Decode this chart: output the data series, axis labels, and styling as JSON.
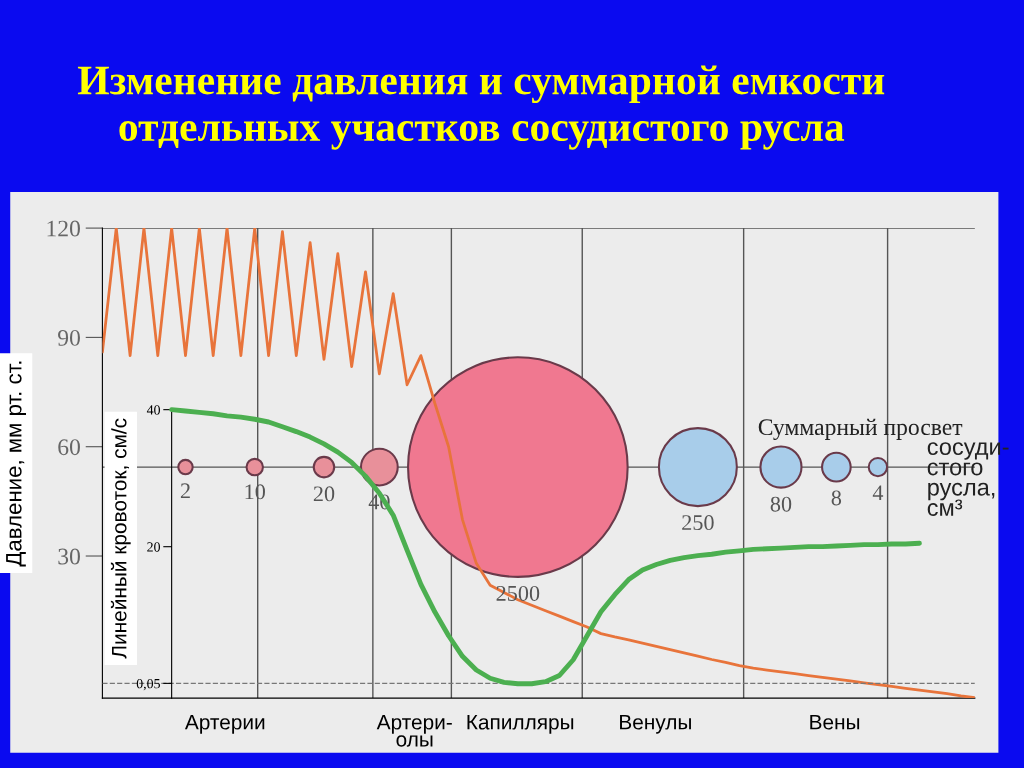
{
  "chart_data": {
    "type": "line",
    "title": "Изменение давления и суммарной емкости\nотдельных участков сосудистого русла",
    "ylabel": "Давление, мм рт. ст.",
    "y2label": "Линейный кровоток, см/с",
    "annotations": [
      "Суммарный просвет",
      "сосуди-\nстого\nрусла,\nсм³",
      "Артерии",
      "Артери-\nолы",
      "Капилляры",
      "Венулы",
      "Вены",
      "2",
      "10",
      "20",
      "40",
      "2500",
      "250",
      "80",
      "8",
      "4"
    ],
    "categories": [
      null,
      null,
      null,
      null,
      null,
      null,
      null,
      null,
      null,
      null,
      null,
      null,
      null,
      null,
      null,
      null,
      null,
      null,
      null,
      null,
      null,
      null,
      null,
      null,
      null,
      null,
      null,
      null,
      null,
      null,
      null,
      null,
      null,
      null,
      null,
      null,
      null,
      null,
      null,
      null,
      null,
      null,
      null,
      null,
      null,
      null,
      null,
      null,
      null,
      null,
      null,
      null,
      null,
      null,
      null,
      null,
      null,
      null,
      null,
      null,
      null,
      null,
      null,
      null
    ],
    "ylim": [
      -9,
      120
    ],
    "yticks": [
      30,
      60,
      90,
      120
    ],
    "y2lim": [
      -2.1,
      66.5
    ],
    "y2ticks": [
      {
        "value": 0.05,
        "label": "0,05"
      },
      20,
      40
    ],
    "grid": false,
    "ref_lines": [
      {
        "axis": "y",
        "value": 54.4,
        "color": "#555555"
      },
      {
        "axis": "y2",
        "value": 0.05,
        "color": "#777777",
        "line_style": "dashed"
      }
    ],
    "series": [
      {
        "type": "line",
        "color": "#e8743b",
        "values": [
          86,
          120,
          85,
          120,
          85,
          120,
          85,
          120,
          85,
          120,
          85,
          120,
          85,
          119,
          85,
          116,
          84,
          113,
          82,
          108,
          80,
          102,
          77,
          85,
          72,
          60,
          40,
          28,
          22,
          20,
          18,
          16.5,
          15,
          13.5,
          12,
          10.5,
          8.7,
          7.8,
          7.0,
          6.1,
          5.2,
          4.3,
          3.4,
          2.5,
          1.6,
          0.8,
          -0.1,
          -0.8,
          -1.3,
          -1.8,
          -2.3,
          -2.8,
          -3.3,
          -3.8,
          -4.3,
          -4.8,
          -5.3,
          -5.8,
          -6.3,
          -6.8,
          -7.3,
          -7.8,
          -8.4,
          -8.9
        ]
      },
      {
        "type": "line",
        "color": "#4caf50",
        "axis": "y2",
        "values": [
          null,
          null,
          null,
          null,
          null,
          40,
          39.8,
          39.6,
          39.4,
          39.1,
          38.9,
          38.6,
          38.2,
          37.5,
          36.8,
          36,
          35,
          33.8,
          32.3,
          30.3,
          27.8,
          24.6,
          19.5,
          14.5,
          10.5,
          7,
          4,
          2,
          0.8,
          0.2,
          0,
          0,
          0.3,
          1.2,
          3.5,
          7,
          10.5,
          13,
          15.2,
          16.6,
          17.4,
          18,
          18.4,
          18.7,
          18.9,
          19.2,
          19.4,
          19.6,
          19.7,
          19.8,
          19.9,
          20,
          20,
          20.1,
          20.2,
          20.3,
          20.3,
          20.4,
          20.4,
          20.5,
          null,
          null,
          null,
          null
        ]
      },
      {
        "type": "bubble",
        "values": [
          null,
          null,
          null,
          null,
          null,
          null,
          54.4,
          null,
          null,
          null,
          null,
          54.4,
          null,
          null,
          null,
          null,
          54.4,
          null,
          null,
          null,
          54.4,
          null,
          null,
          null,
          null,
          null,
          null,
          null,
          null,
          null,
          54.4,
          null,
          null,
          null,
          null,
          null,
          null,
          null,
          null,
          null,
          null,
          null,
          null,
          54.4,
          null,
          null,
          null,
          null,
          null,
          54.4,
          null,
          null,
          null,
          54.4,
          null,
          null,
          54.4,
          null,
          null,
          null,
          null,
          null,
          null,
          null
        ],
        "sizes": [
          null,
          null,
          null,
          null,
          null,
          null,
          0.0043,
          null,
          null,
          null,
          null,
          0.0056,
          null,
          null,
          null,
          null,
          0.0087,
          null,
          null,
          null,
          0.028,
          null,
          null,
          null,
          null,
          null,
          null,
          null,
          null,
          null,
          1,
          null,
          null,
          null,
          null,
          null,
          null,
          null,
          null,
          null,
          null,
          null,
          null,
          0.126,
          null,
          null,
          null,
          null,
          null,
          0.035,
          null,
          null,
          null,
          0.017,
          null,
          null,
          0.007,
          null,
          null,
          null,
          null,
          null,
          null,
          null
        ],
        "colors": [
          null,
          null,
          null,
          null,
          null,
          null,
          "#e8909a",
          null,
          null,
          null,
          null,
          "#e8909a",
          null,
          null,
          null,
          null,
          "#e8909a",
          null,
          null,
          null,
          "#e8909a",
          null,
          null,
          null,
          null,
          null,
          null,
          null,
          null,
          null,
          "#f07890",
          null,
          null,
          null,
          null,
          null,
          null,
          null,
          null,
          null,
          null,
          null,
          null,
          "#a8cdea",
          null,
          null,
          null,
          null,
          null,
          "#a8cdea",
          null,
          null,
          null,
          "#a8cdea",
          null,
          null,
          "#a8cdea",
          null,
          null,
          null,
          null,
          null,
          null,
          null
        ]
      }
    ]
  }
}
